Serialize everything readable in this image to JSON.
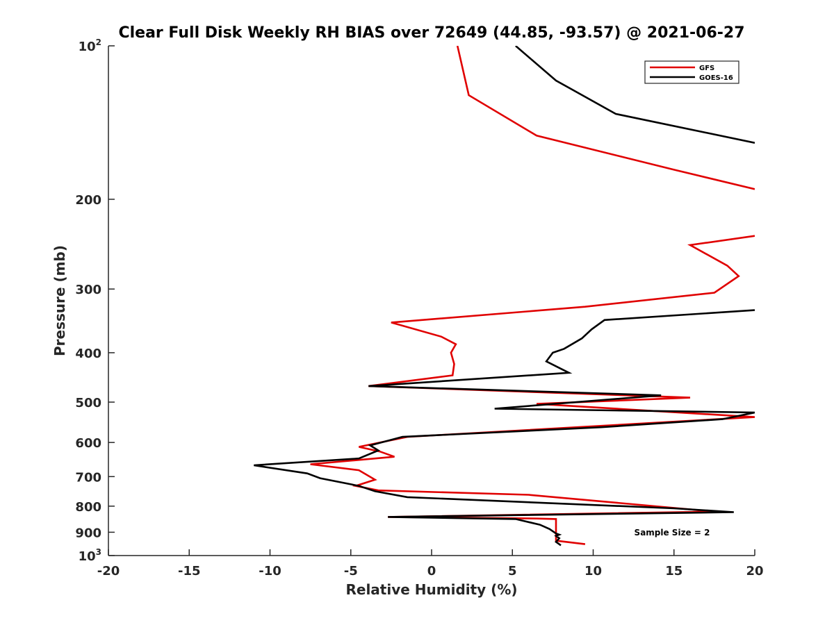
{
  "chart_data": {
    "type": "line",
    "title": "Clear Full Disk Weekly RH BIAS over 72649 (44.85, -93.57) @ 2021-06-27",
    "xlabel": "Relative Humidity (%)",
    "ylabel": "Pressure (mb)",
    "xlim": [
      -20,
      20
    ],
    "ylim": [
      100,
      1000
    ],
    "y_scale": "log",
    "y_reversed": true,
    "x_ticks": [
      -20,
      -15,
      -10,
      -5,
      0,
      5,
      10,
      15,
      20
    ],
    "x_tick_labels": [
      "-20",
      "-15",
      "-10",
      "-5",
      "0",
      "5",
      "10",
      "15",
      "20"
    ],
    "y_ticks": [
      {
        "value": 100,
        "base": "10",
        "exp": "2"
      },
      {
        "value": 200,
        "base": "200",
        "exp": ""
      },
      {
        "value": 300,
        "base": "300",
        "exp": ""
      },
      {
        "value": 400,
        "base": "400",
        "exp": ""
      },
      {
        "value": 500,
        "base": "500",
        "exp": ""
      },
      {
        "value": 600,
        "base": "600",
        "exp": ""
      },
      {
        "value": 700,
        "base": "700",
        "exp": ""
      },
      {
        "value": 800,
        "base": "800",
        "exp": ""
      },
      {
        "value": 900,
        "base": "900",
        "exp": ""
      },
      {
        "value": 1000,
        "base": "10",
        "exp": "3"
      }
    ],
    "grid": false,
    "legend_position": "top-right",
    "annotation": "Sample Size = 2",
    "series": [
      {
        "name": "GFS",
        "color": "#e00000",
        "segments": [
          [
            [
              1.6,
              100
            ],
            [
              2.3,
              125
            ],
            [
              6.5,
              150
            ],
            [
              15,
              175
            ],
            [
              20,
              191
            ]
          ],
          [
            [
              20,
              236
            ],
            [
              16,
              246
            ],
            [
              18.3,
              270
            ],
            [
              19,
              283
            ],
            [
              17.5,
              305
            ],
            [
              9.5,
              325
            ],
            [
              -2.5,
              349
            ],
            [
              0.6,
              372
            ],
            [
              1.5,
              385
            ],
            [
              1.2,
              400
            ],
            [
              1.4,
              421
            ],
            [
              1.3,
              443
            ],
            [
              -3.9,
              465
            ],
            [
              16,
              490
            ],
            [
              6.5,
              504
            ],
            [
              20,
              535
            ],
            [
              9,
              560
            ],
            [
              -1.5,
              585
            ],
            [
              -4.5,
              612
            ],
            [
              -3.2,
              625
            ],
            [
              -2.3,
              640
            ],
            [
              -7.5,
              662
            ],
            [
              -4.5,
              680
            ],
            [
              -3.5,
              710
            ],
            [
              -4.7,
              730
            ],
            [
              -3.3,
              745
            ],
            [
              6,
              760
            ],
            [
              17.5,
              820
            ],
            [
              -2.7,
              840
            ],
            [
              6.5,
              846
            ],
            [
              7.7,
              848
            ],
            [
              7.7,
              900
            ],
            [
              7.7,
              935
            ],
            [
              9.5,
              950
            ]
          ]
        ]
      },
      {
        "name": "GOES-16",
        "color": "#000000",
        "segments": [
          [
            [
              5.2,
              100
            ],
            [
              7.7,
              117
            ],
            [
              11.4,
              136
            ],
            [
              20,
              155
            ]
          ],
          [
            [
              20,
              330
            ],
            [
              10.7,
              345
            ],
            [
              9.9,
              360
            ],
            [
              9.3,
              375
            ],
            [
              8.2,
              393
            ],
            [
              7.5,
              400
            ],
            [
              7.1,
              416
            ],
            [
              8.5,
              438
            ],
            [
              -3.9,
              465
            ],
            [
              14.2,
              485
            ],
            [
              3.9,
              515
            ],
            [
              20,
              524
            ],
            [
              18,
              540
            ],
            [
              10.5,
              560
            ],
            [
              -1.8,
              585
            ],
            [
              -3.8,
              608
            ],
            [
              -3.3,
              622
            ],
            [
              -4.5,
              645
            ],
            [
              -11,
              665
            ],
            [
              -7.7,
              690
            ],
            [
              -6.9,
              705
            ],
            [
              -4.5,
              730
            ],
            [
              -3.5,
              748
            ],
            [
              -1.5,
              768
            ],
            [
              15,
              808
            ],
            [
              18.7,
              822
            ],
            [
              -2.7,
              840
            ],
            [
              5.2,
              848
            ],
            [
              6.7,
              870
            ],
            [
              7.3,
              887
            ],
            [
              7.7,
              905
            ],
            [
              7.9,
              910
            ],
            [
              7.7,
              915
            ],
            [
              7.9,
              925
            ],
            [
              7.7,
              940
            ],
            [
              8,
              955
            ]
          ]
        ]
      }
    ]
  }
}
